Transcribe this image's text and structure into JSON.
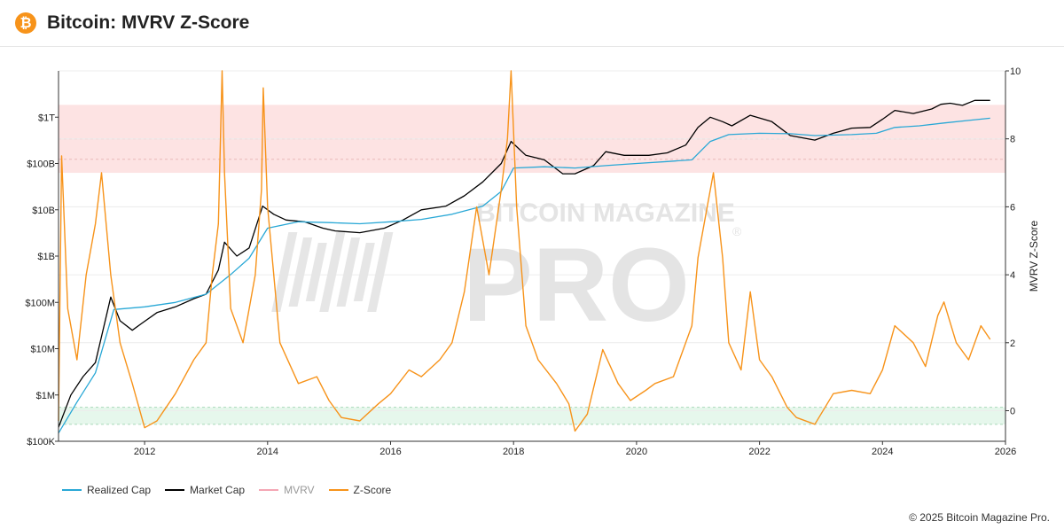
{
  "header": {
    "title": "Bitcoin: MVRV Z-Score",
    "logo_glyph": "₿",
    "logo_icon": "bitcoin-logo-icon"
  },
  "watermark": {
    "top": "BITCOIN MAGAZINE",
    "bottom": "PRO",
    "mark": "®"
  },
  "copyright": "© 2025 Bitcoin Magazine Pro.",
  "legend": [
    {
      "name": "Realized Cap",
      "color": "#29a8d6"
    },
    {
      "name": "Market Cap",
      "color": "#000000"
    },
    {
      "name": "MVRV",
      "color": "#f4a6b4"
    },
    {
      "name": "Z-Score",
      "color": "#f7931a"
    }
  ],
  "chart_data": {
    "type": "line",
    "title": "Bitcoin: MVRV Z-Score",
    "x_ticks": [
      "2012",
      "2014",
      "2016",
      "2018",
      "2020",
      "2022",
      "2024",
      "2026"
    ],
    "xlim": [
      2010.6,
      2026
    ],
    "left_axis": {
      "scale": "log",
      "ylim": [
        100000,
        10000000000000
      ],
      "ticks": [
        {
          "value": 100000,
          "label": "$100K"
        },
        {
          "value": 1000000,
          "label": "$1M"
        },
        {
          "value": 10000000,
          "label": "$10M"
        },
        {
          "value": 100000000,
          "label": "$100M"
        },
        {
          "value": 1000000000,
          "label": "$1B"
        },
        {
          "value": 10000000000,
          "label": "$10B"
        },
        {
          "value": 100000000000,
          "label": "$100B"
        },
        {
          "value": 1000000000000,
          "label": "$1T"
        }
      ]
    },
    "right_axis": {
      "label": "MVRV Z-Score",
      "ylim": [
        -0.9,
        10
      ],
      "ticks": [
        0,
        2,
        4,
        6,
        8,
        10
      ]
    },
    "zones": [
      {
        "name": "overvalued",
        "from": 7,
        "to": 9,
        "color": "#fde3e3"
      },
      {
        "name": "undervalued",
        "from": -0.4,
        "to": 0.1,
        "color": "#e6f7ec"
      }
    ],
    "series": [
      {
        "name": "Market Cap",
        "axis": "left",
        "color": "#000000",
        "x": [
          2010.6,
          2010.8,
          2011.0,
          2011.2,
          2011.45,
          2011.6,
          2011.8,
          2011.95,
          2012.2,
          2012.5,
          2012.8,
          2013.0,
          2013.2,
          2013.3,
          2013.5,
          2013.7,
          2013.92,
          2014.1,
          2014.3,
          2014.6,
          2014.9,
          2015.1,
          2015.5,
          2015.9,
          2016.2,
          2016.5,
          2016.9,
          2017.2,
          2017.5,
          2017.8,
          2017.96,
          2018.2,
          2018.5,
          2018.8,
          2019.0,
          2019.3,
          2019.5,
          2019.8,
          2020.2,
          2020.5,
          2020.8,
          2021.0,
          2021.2,
          2021.4,
          2021.55,
          2021.85,
          2022.2,
          2022.5,
          2022.9,
          2023.2,
          2023.5,
          2023.8,
          2024.0,
          2024.2,
          2024.5,
          2024.8,
          2024.95,
          2025.1,
          2025.3,
          2025.5,
          2025.75
        ],
        "y": [
          200000,
          1000000,
          2500000,
          5000000,
          130000000,
          40000000,
          25000000,
          35000000,
          60000000,
          80000000,
          120000000,
          150000000,
          500000000,
          2000000000,
          1000000000,
          1500000000,
          12000000000,
          8000000000,
          6000000000,
          5500000000,
          4000000000,
          3500000000,
          3200000000,
          4000000000,
          6000000000,
          10000000000,
          12000000000,
          20000000000,
          40000000000,
          100000000000,
          300000000000,
          150000000000,
          120000000000,
          60000000000,
          60000000000,
          90000000000,
          180000000000,
          150000000000,
          150000000000,
          170000000000,
          250000000000,
          600000000000,
          1000000000000,
          800000000000,
          650000000000,
          1100000000000,
          800000000000,
          400000000000,
          320000000000,
          450000000000,
          580000000000,
          600000000000,
          900000000000,
          1400000000000,
          1200000000000,
          1500000000000,
          1900000000000,
          2000000000000,
          1800000000000,
          2300000000000,
          2300000000000
        ]
      },
      {
        "name": "Realized Cap",
        "axis": "left",
        "color": "#29a8d6",
        "x": [
          2010.6,
          2010.9,
          2011.2,
          2011.5,
          2012.0,
          2012.5,
          2013.0,
          2013.4,
          2013.7,
          2014.0,
          2014.5,
          2015.0,
          2015.5,
          2016.0,
          2016.5,
          2017.0,
          2017.5,
          2017.8,
          2018.0,
          2018.5,
          2019.0,
          2019.5,
          2020.0,
          2020.5,
          2020.9,
          2021.2,
          2021.5,
          2022.0,
          2022.5,
          2022.9,
          2023.5,
          2023.9,
          2024.2,
          2024.6,
          2025.0,
          2025.4,
          2025.75
        ],
        "y": [
          150000,
          700000,
          3000000,
          70000000,
          80000000,
          100000000,
          150000000,
          400000000,
          900000000,
          4000000000,
          5500000000,
          5300000000,
          5000000000,
          5500000000,
          6200000000,
          8000000000,
          12000000000,
          25000000000,
          80000000000,
          85000000000,
          80000000000,
          90000000000,
          100000000000,
          110000000000,
          120000000000,
          300000000000,
          420000000000,
          450000000000,
          440000000000,
          400000000000,
          420000000000,
          450000000000,
          600000000000,
          650000000000,
          750000000000,
          850000000000,
          950000000000
        ]
      },
      {
        "name": "Z-Score",
        "axis": "right",
        "color": "#f7931a",
        "x": [
          2010.6,
          2010.65,
          2010.75,
          2010.9,
          2011.05,
          2011.2,
          2011.3,
          2011.45,
          2011.6,
          2011.8,
          2012.0,
          2012.2,
          2012.5,
          2012.8,
          2013.0,
          2013.1,
          2013.2,
          2013.26,
          2013.3,
          2013.4,
          2013.6,
          2013.8,
          2013.9,
          2013.93,
          2014.0,
          2014.2,
          2014.5,
          2014.8,
          2015.0,
          2015.2,
          2015.5,
          2015.8,
          2016.0,
          2016.3,
          2016.5,
          2016.8,
          2017.0,
          2017.2,
          2017.4,
          2017.6,
          2017.8,
          2017.9,
          2017.96,
          2018.05,
          2018.2,
          2018.4,
          2018.7,
          2018.9,
          2019.0,
          2019.2,
          2019.45,
          2019.7,
          2019.9,
          2020.15,
          2020.3,
          2020.6,
          2020.9,
          2021.0,
          2021.15,
          2021.25,
          2021.4,
          2021.5,
          2021.7,
          2021.85,
          2022.0,
          2022.2,
          2022.45,
          2022.6,
          2022.9,
          2023.2,
          2023.5,
          2023.8,
          2024.0,
          2024.2,
          2024.5,
          2024.7,
          2024.9,
          2025.0,
          2025.2,
          2025.4,
          2025.6,
          2025.75
        ],
        "y": [
          -0.3,
          7.5,
          3.0,
          1.5,
          4.0,
          5.5,
          7.0,
          4.0,
          2.0,
          0.8,
          -0.5,
          -0.3,
          0.5,
          1.5,
          2.0,
          4.0,
          5.5,
          10.0,
          7.0,
          3.0,
          2.0,
          4.0,
          6.5,
          9.5,
          6.0,
          2.0,
          0.8,
          1.0,
          0.3,
          -0.2,
          -0.3,
          0.2,
          0.5,
          1.2,
          1.0,
          1.5,
          2.0,
          3.5,
          6.0,
          4.0,
          6.5,
          8.0,
          10.0,
          6.0,
          2.5,
          1.5,
          0.8,
          0.2,
          -0.6,
          -0.1,
          1.8,
          0.8,
          0.3,
          0.6,
          0.8,
          1.0,
          2.5,
          4.5,
          6.0,
          7.0,
          4.5,
          2.0,
          1.2,
          3.5,
          1.5,
          1.0,
          0.1,
          -0.2,
          -0.4,
          0.5,
          0.6,
          0.5,
          1.2,
          2.5,
          2.0,
          1.3,
          2.8,
          3.2,
          2.0,
          1.5,
          2.5,
          2.1
        ]
      }
    ]
  }
}
